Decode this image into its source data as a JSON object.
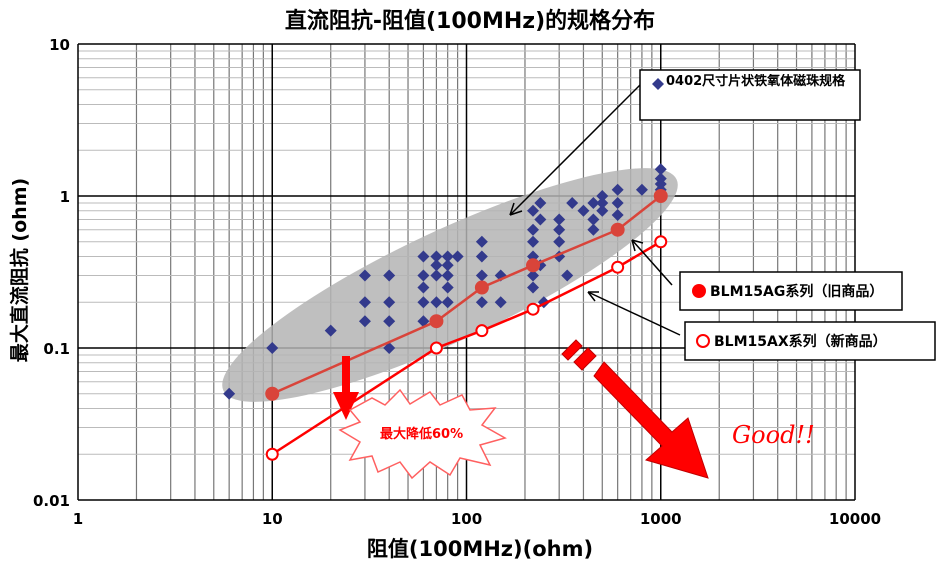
{
  "chart_data": {
    "type": "scatter",
    "title": "直流阻抗-阻值(100MHz)的规格分布",
    "xlabel": "阻值(100MHz)(ohm)",
    "ylabel": "最大直流阻抗 (ohm)",
    "xscale": "log",
    "yscale": "log",
    "xlim": [
      1,
      10000
    ],
    "ylim": [
      0.01,
      10
    ],
    "xticks": [
      "1",
      "10",
      "100",
      "1000",
      "10000"
    ],
    "yticks": [
      "0.01",
      "0.1",
      "1",
      "10"
    ],
    "grid": true,
    "series": [
      {
        "name": "0402尺寸片状铁氧体磁珠规格",
        "marker": "diamond",
        "color": "#333a8c",
        "points": [
          [
            6,
            0.05
          ],
          [
            10,
            0.1
          ],
          [
            20,
            0.13
          ],
          [
            30,
            0.3
          ],
          [
            30,
            0.2
          ],
          [
            30,
            0.15
          ],
          [
            40,
            0.3
          ],
          [
            40,
            0.2
          ],
          [
            40,
            0.15
          ],
          [
            40,
            0.1
          ],
          [
            60,
            0.4
          ],
          [
            60,
            0.3
          ],
          [
            60,
            0.25
          ],
          [
            60,
            0.2
          ],
          [
            60,
            0.15
          ],
          [
            70,
            0.4
          ],
          [
            70,
            0.35
          ],
          [
            70,
            0.3
          ],
          [
            70,
            0.2
          ],
          [
            80,
            0.4
          ],
          [
            80,
            0.35
          ],
          [
            80,
            0.3
          ],
          [
            80,
            0.25
          ],
          [
            80,
            0.2
          ],
          [
            90,
            0.4
          ],
          [
            120,
            0.5
          ],
          [
            120,
            0.4
          ],
          [
            120,
            0.3
          ],
          [
            120,
            0.2
          ],
          [
            150,
            0.3
          ],
          [
            150,
            0.2
          ],
          [
            220,
            0.8
          ],
          [
            220,
            0.6
          ],
          [
            220,
            0.5
          ],
          [
            220,
            0.4
          ],
          [
            220,
            0.3
          ],
          [
            220,
            0.25
          ],
          [
            240,
            0.9
          ],
          [
            240,
            0.7
          ],
          [
            240,
            0.35
          ],
          [
            250,
            0.2
          ],
          [
            300,
            0.7
          ],
          [
            300,
            0.6
          ],
          [
            300,
            0.5
          ],
          [
            300,
            0.4
          ],
          [
            330,
            0.3
          ],
          [
            350,
            0.9
          ],
          [
            400,
            0.8
          ],
          [
            450,
            0.9
          ],
          [
            450,
            0.7
          ],
          [
            450,
            0.6
          ],
          [
            500,
            1.0
          ],
          [
            500,
            0.9
          ],
          [
            500,
            0.8
          ],
          [
            600,
            1.1
          ],
          [
            600,
            0.9
          ],
          [
            600,
            0.75
          ],
          [
            800,
            1.1
          ],
          [
            1000,
            1.5
          ],
          [
            1000,
            1.3
          ],
          [
            1000,
            1.2
          ],
          [
            1000,
            1.1
          ]
        ]
      },
      {
        "name": "BLM15AG系列（旧商品）",
        "marker": "filled-circle",
        "color": "#d9443a",
        "points": [
          [
            10,
            0.05
          ],
          [
            70,
            0.15
          ],
          [
            120,
            0.25
          ],
          [
            220,
            0.35
          ],
          [
            600,
            0.6
          ],
          [
            1000,
            1.0
          ]
        ]
      },
      {
        "name": "BLM15AX系列（新商品）",
        "marker": "open-circle",
        "color": "#ff0000",
        "points": [
          [
            10,
            0.02
          ],
          [
            70,
            0.1
          ],
          [
            120,
            0.13
          ],
          [
            220,
            0.18
          ],
          [
            600,
            0.34
          ],
          [
            1000,
            0.5
          ]
        ]
      }
    ],
    "annotations": {
      "reduction": "最大降低60%",
      "good": "Good!!"
    },
    "colors": {
      "ellipse": "#b4b4b4",
      "arrow": "#ff0000"
    }
  }
}
